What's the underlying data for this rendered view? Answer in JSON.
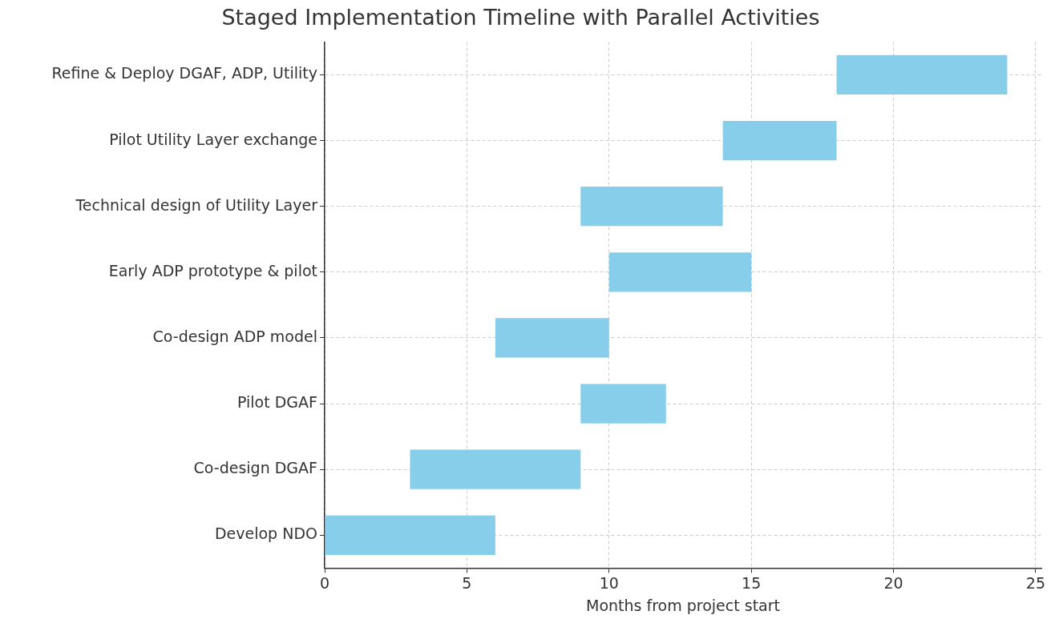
{
  "chart_data": {
    "type": "bar",
    "orientation": "horizontal",
    "title": "Staged Implementation Timeline with Parallel Activities",
    "xlabel": "Months from project start",
    "categories": [
      "Refine & Deploy DGAF, ADP, Utility",
      "Pilot Utility Layer exchange",
      "Technical design of Utility Layer",
      "Early ADP prototype & pilot",
      "Co-design ADP model",
      "Pilot DGAF",
      "Co-design DGAF",
      "Develop NDO"
    ],
    "base": [
      18,
      14,
      9,
      10,
      6,
      9,
      3,
      0
    ],
    "values": [
      6,
      4,
      5,
      5,
      4,
      3,
      6,
      6
    ],
    "color": "#87ceeb",
    "xlim": [
      0,
      25.2
    ],
    "xticks": [
      0,
      5,
      10,
      15,
      20,
      25
    ],
    "grid": true,
    "legend": false
  }
}
